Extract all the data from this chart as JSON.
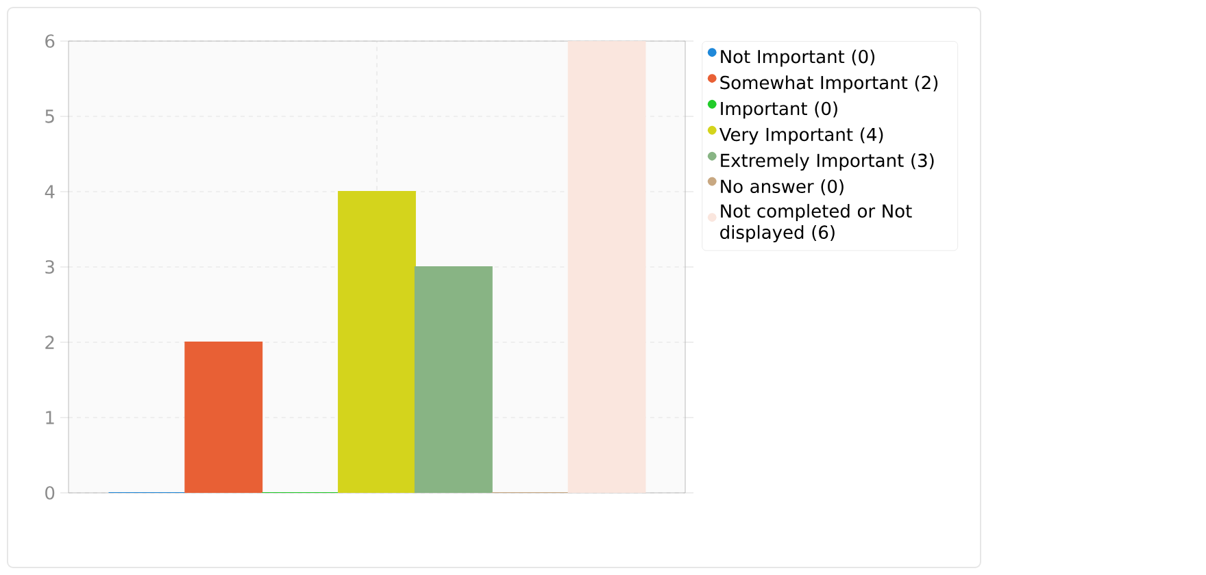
{
  "chart_data": {
    "type": "bar",
    "categories": [
      null
    ],
    "series": [
      {
        "name": "Not Important (0)",
        "color": "#1f88d9",
        "values": [
          0
        ]
      },
      {
        "name": "Somewhat Important (2)",
        "color": "#e86035",
        "values": [
          2
        ]
      },
      {
        "name": "Important (0)",
        "color": "#22cc2a",
        "values": [
          0
        ]
      },
      {
        "name": "Very Important (4)",
        "color": "#d4d41c",
        "values": [
          4
        ]
      },
      {
        "name": "Extremely Important (3)",
        "color": "#88b484",
        "values": [
          3
        ]
      },
      {
        "name": "No answer (0)",
        "color": "#c8a882",
        "values": [
          0
        ]
      },
      {
        "name": "Not completed or Not displayed (6)",
        "color": "#fae6de",
        "values": [
          6
        ]
      }
    ],
    "ylim": [
      0,
      6
    ],
    "yticks": [
      0,
      1,
      2,
      3,
      4,
      5,
      6
    ],
    "grid": true,
    "legend": "right"
  }
}
